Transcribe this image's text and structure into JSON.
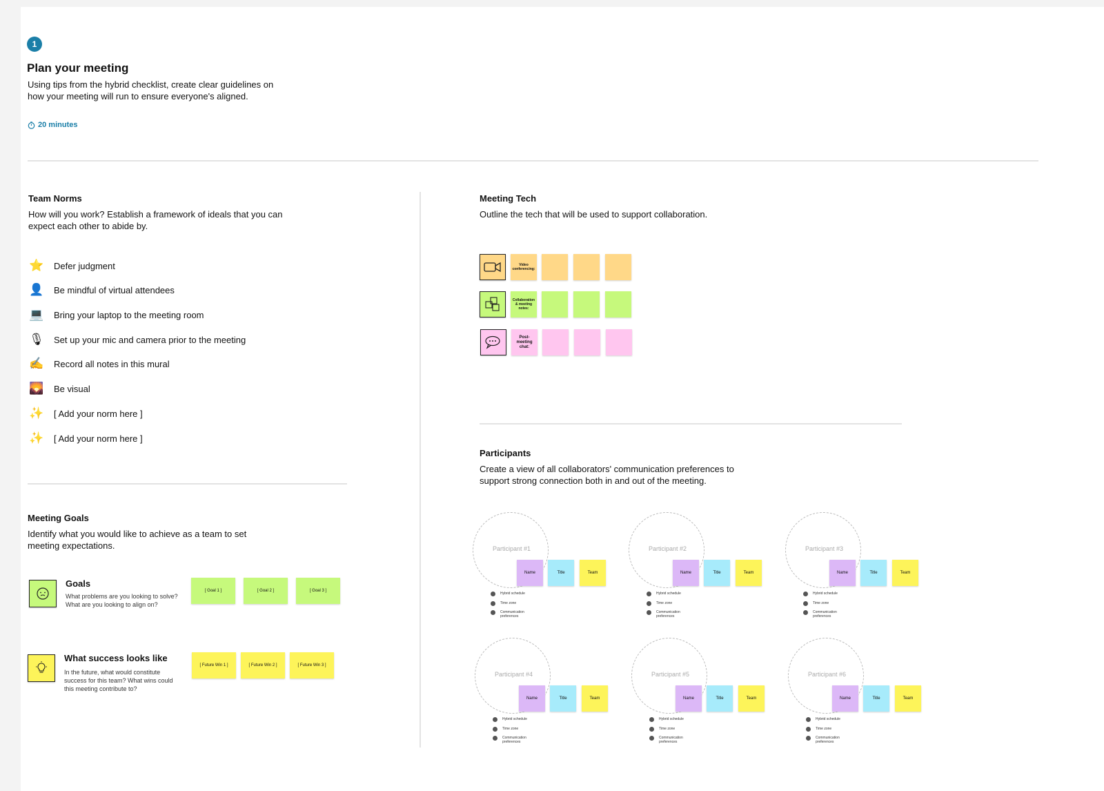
{
  "header": {
    "step_number": "1",
    "title": "Plan your meeting",
    "description_line1": "Using tips from the hybrid checklist, create clear guidelines on",
    "description_line2": "how your meeting will run to ensure everyone's aligned.",
    "duration": "20 minutes",
    "accent_color": "#1b7fa8"
  },
  "team_norms": {
    "title": "Team Norms",
    "description_line1": "How will you work? Establish a framework of ideals that you can",
    "description_line2": "expect each other to abide by.",
    "items": [
      {
        "icon": "star-icon",
        "glyph": "⭐",
        "label": "Defer judgment"
      },
      {
        "icon": "person-icon",
        "glyph": "👤",
        "label": "Be mindful of virtual attendees"
      },
      {
        "icon": "laptop-icon",
        "glyph": "💻",
        "label": "Bring your laptop to the meeting room"
      },
      {
        "icon": "microphone-icon",
        "glyph": "🎙",
        "label": "Set up your mic and camera prior to the meeting"
      },
      {
        "icon": "writing-hand-icon",
        "glyph": "✍",
        "label": "Record all notes in this mural"
      },
      {
        "icon": "picture-icon",
        "glyph": "🌄",
        "label": "Be visual"
      },
      {
        "icon": "sparkles-icon",
        "glyph": "✨",
        "label": "[ Add your norm here ]"
      },
      {
        "icon": "sparkles-icon",
        "glyph": "✨",
        "label": "[ Add your norm here ]"
      }
    ]
  },
  "meeting_goals": {
    "title": "Meeting Goals",
    "description_line1": "Identify what you would like to achieve as a team to set",
    "description_line2": "meeting expectations.",
    "goals": {
      "title": "Goals",
      "description": "What problems are you looking to solve? What are you looking to align on?",
      "stickies": [
        "[ Goal 1 ]",
        "[ Goal 2 ]",
        "[ Goal 3 ]"
      ]
    },
    "success": {
      "title": "What success looks like",
      "description": "In the future, what would constitute success for this team? What wins could this meeting contribute to?",
      "stickies": [
        "[ Future Win 1 ]",
        "[ Future Win 2 ]",
        "[ Future Win 3 ]"
      ]
    }
  },
  "meeting_tech": {
    "title": "Meeting Tech",
    "description": "Outline the tech that will be used to support collaboration.",
    "rows": [
      {
        "icon": "video-camera-icon",
        "label": "Video conferencing:",
        "color": "#ffd888"
      },
      {
        "icon": "collaboration-icon",
        "label": "Collaboration & meeting notes:",
        "color": "#c6f97c"
      },
      {
        "icon": "chat-bubble-icon",
        "label": "Post-meeting chat:",
        "color": "#ffc6ef"
      }
    ]
  },
  "participants": {
    "title": "Participants",
    "description_line1": "Create a view of all collaborators' communication preferences to",
    "description_line2": "support strong connection both in and out of the meeting.",
    "cards": [
      {
        "label": "Participant #1"
      },
      {
        "label": "Participant #2"
      },
      {
        "label": "Participant #3"
      },
      {
        "label": "Participant #4"
      },
      {
        "label": "Participant #5"
      },
      {
        "label": "Participant #6"
      }
    ],
    "sticky_labels": {
      "name": "Name",
      "title": "Title",
      "team": "Team"
    },
    "preferences": {
      "schedule": "Hybrid schedule",
      "timezone": "Time zone",
      "communication": "Communication preferences"
    }
  }
}
